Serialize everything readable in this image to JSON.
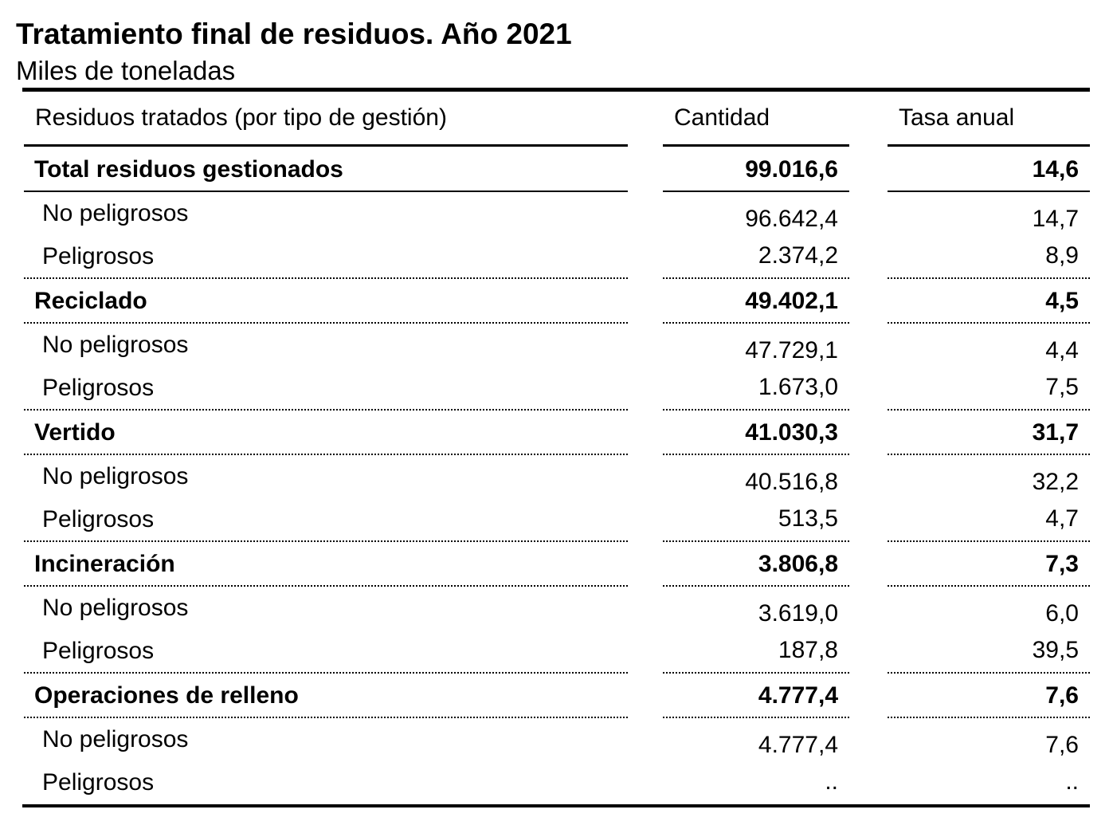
{
  "title": "Tratamiento final de residuos. Año 2021",
  "subtitle": "Miles de toneladas",
  "columns": {
    "label": "Residuos tratados (por tipo de gestión)",
    "quantity": "Cantidad",
    "rate": "Tasa anual"
  },
  "groups": [
    {
      "label": "Total residuos gestionados",
      "quantity": "99.016,6",
      "rate": "14,6",
      "rows": [
        {
          "label": "No peligrosos",
          "quantity": "96.642,4",
          "rate": "14,7"
        },
        {
          "label": "Peligrosos",
          "quantity": "2.374,2",
          "rate": "8,9"
        }
      ]
    },
    {
      "label": "Reciclado",
      "quantity": "49.402,1",
      "rate": "4,5",
      "rows": [
        {
          "label": "No peligrosos",
          "quantity": "47.729,1",
          "rate": "4,4"
        },
        {
          "label": "Peligrosos",
          "quantity": "1.673,0",
          "rate": "7,5"
        }
      ]
    },
    {
      "label": "Vertido",
      "quantity": "41.030,3",
      "rate": "31,7",
      "rows": [
        {
          "label": "No peligrosos",
          "quantity": "40.516,8",
          "rate": "32,2"
        },
        {
          "label": "Peligrosos",
          "quantity": "513,5",
          "rate": "4,7"
        }
      ]
    },
    {
      "label": "Incineración",
      "quantity": "3.806,8",
      "rate": "7,3",
      "rows": [
        {
          "label": "No peligrosos",
          "quantity": "3.619,0",
          "rate": "6,0"
        },
        {
          "label": "Peligrosos",
          "quantity": "187,8",
          "rate": "39,5"
        }
      ]
    },
    {
      "label": "Operaciones de relleno",
      "quantity": "4.777,4",
      "rate": "7,6",
      "rows": [
        {
          "label": "No peligrosos",
          "quantity": "4.777,4",
          "rate": "7,6"
        },
        {
          "label": "Peligrosos",
          "quantity": "..",
          "rate": ".."
        }
      ]
    }
  ]
}
